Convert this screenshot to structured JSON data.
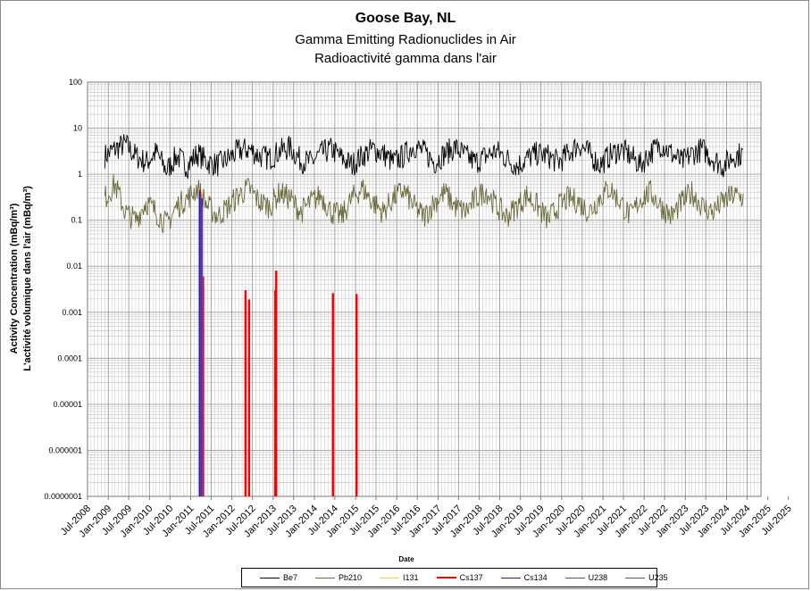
{
  "title": "Goose Bay, NL",
  "subtitle_en": "Gamma Emitting Radionuclides in Air",
  "subtitle_fr": "Radioactivité gamma dans l'air",
  "ylabel_en": "Activity Concentration  (mBq/m³)",
  "ylabel_fr": "L'activité volumique dans l'air (mBq/m³)",
  "xlabel": "Date",
  "chart_data": {
    "type": "line",
    "yscale": "log",
    "ylim": [
      1e-07,
      100
    ],
    "xlim": [
      "2008-07-01",
      "2024-11-01"
    ],
    "y_ticks": [
      "100",
      "10",
      "1",
      "0.1",
      "0.01",
      "0.001",
      "0.0001",
      "0.00001",
      "0.000001",
      "0.0000001"
    ],
    "x_ticks": [
      "Jul-2008",
      "Jan-2009",
      "Jul-2009",
      "Jan-2010",
      "Jul-2010",
      "Jan-2011",
      "Jul-2011",
      "Jan-2012",
      "Jul-2012",
      "Jan-2013",
      "Jul-2013",
      "Jan-2014",
      "Jul-2014",
      "Jan-2015",
      "Jul-2015",
      "Jan-2016",
      "Jul-2016",
      "Jan-2017",
      "Jul-2017",
      "Jan-2018",
      "Jul-2018",
      "Jan-2019",
      "Jul-2019",
      "Jan-2020",
      "Jul-2020",
      "Jan-2021",
      "Jul-2021",
      "Jan-2022",
      "Jul-2022",
      "Jan-2023",
      "Jul-2023",
      "Jan-2024",
      "Jul-2024",
      "Jan-2025",
      "Jul-2025"
    ],
    "grid": true,
    "legend_position": "bottom",
    "series": [
      {
        "name": "Be7",
        "color": "#000000",
        "width": 0.9,
        "kind": "trend",
        "x": [
          "2008-12-01",
          "2009-03-01",
          "2009-06-01",
          "2009-09-01",
          "2009-12-01",
          "2010-03-01",
          "2010-06-01",
          "2010-09-01",
          "2010-12-01",
          "2011-03-01",
          "2011-06-01",
          "2011-09-01",
          "2011-12-01",
          "2012-03-01",
          "2012-06-01",
          "2012-09-01",
          "2012-12-01",
          "2013-03-01",
          "2013-06-01",
          "2013-09-01",
          "2013-12-01",
          "2014-03-01",
          "2014-06-01",
          "2014-09-01",
          "2014-12-01",
          "2015-03-01",
          "2015-06-01",
          "2015-09-01",
          "2015-12-01",
          "2016-03-01",
          "2016-06-01",
          "2016-09-01",
          "2016-12-01",
          "2017-03-01",
          "2017-06-01",
          "2017-09-01",
          "2017-12-01",
          "2018-03-01",
          "2018-06-01",
          "2018-09-01",
          "2018-12-01",
          "2019-03-01",
          "2019-06-01",
          "2019-09-01",
          "2019-12-01",
          "2020-03-01",
          "2020-06-01",
          "2020-09-01",
          "2020-12-01",
          "2021-03-01",
          "2021-06-01",
          "2021-09-01",
          "2021-12-01",
          "2022-03-01",
          "2022-06-01",
          "2022-09-01",
          "2022-12-01",
          "2023-03-01",
          "2023-06-01",
          "2023-09-01",
          "2023-12-01",
          "2024-03-01",
          "2024-06-01"
        ],
        "values": [
          2.5,
          3.5,
          4.5,
          2.5,
          1.8,
          3,
          1.2,
          2.5,
          1.5,
          2.8,
          1.8,
          1.6,
          2.2,
          3.2,
          3.5,
          2.5,
          2.2,
          3.2,
          3.8,
          2,
          1.8,
          2.8,
          3.5,
          2.2,
          1.6,
          2.5,
          3.5,
          2.8,
          1.8,
          2.5,
          4.2,
          3,
          1.8,
          2.8,
          3.8,
          2.5,
          1.8,
          2.5,
          3.2,
          2.2,
          1.5,
          2.2,
          2.8,
          2.5,
          1.8,
          2.8,
          4.5,
          2.8,
          1.6,
          2.5,
          3.5,
          2.5,
          1.6,
          3,
          4.5,
          2.8,
          1.8,
          2.8,
          3.5,
          2.2,
          1.5,
          2.5,
          2.8
        ]
      },
      {
        "name": "Pb210",
        "color": "#6b6a3a",
        "width": 0.9,
        "kind": "trend",
        "x": [
          "2008-12-01",
          "2009-03-01",
          "2009-06-01",
          "2009-09-01",
          "2009-12-01",
          "2010-03-01",
          "2010-06-01",
          "2010-09-01",
          "2010-12-01",
          "2011-03-01",
          "2011-06-01",
          "2011-09-01",
          "2011-12-01",
          "2012-03-01",
          "2012-06-01",
          "2012-09-01",
          "2012-12-01",
          "2013-03-01",
          "2013-06-01",
          "2013-09-01",
          "2013-12-01",
          "2014-03-01",
          "2014-06-01",
          "2014-09-01",
          "2014-12-01",
          "2015-03-01",
          "2015-06-01",
          "2015-09-01",
          "2015-12-01",
          "2016-03-01",
          "2016-06-01",
          "2016-09-01",
          "2016-12-01",
          "2017-03-01",
          "2017-06-01",
          "2017-09-01",
          "2017-12-01",
          "2018-03-01",
          "2018-06-01",
          "2018-09-01",
          "2018-12-01",
          "2019-03-01",
          "2019-06-01",
          "2019-09-01",
          "2019-12-01",
          "2020-03-01",
          "2020-06-01",
          "2020-09-01",
          "2020-12-01",
          "2021-03-01",
          "2021-06-01",
          "2021-09-01",
          "2021-12-01",
          "2022-03-01",
          "2022-06-01",
          "2022-09-01",
          "2022-12-01",
          "2023-03-01",
          "2023-06-01",
          "2023-09-01",
          "2023-12-01",
          "2024-03-01",
          "2024-06-01"
        ],
        "values": [
          0.3,
          0.6,
          0.15,
          0.1,
          0.25,
          0.15,
          0.08,
          0.2,
          0.3,
          0.5,
          0.2,
          0.12,
          0.2,
          0.35,
          0.5,
          0.25,
          0.2,
          0.4,
          0.3,
          0.15,
          0.25,
          0.35,
          0.15,
          0.12,
          0.3,
          0.5,
          0.25,
          0.15,
          0.3,
          0.45,
          0.2,
          0.12,
          0.25,
          0.4,
          0.2,
          0.15,
          0.3,
          0.45,
          0.2,
          0.12,
          0.2,
          0.35,
          0.2,
          0.1,
          0.2,
          0.3,
          0.25,
          0.15,
          0.3,
          0.5,
          0.25,
          0.12,
          0.3,
          0.4,
          0.2,
          0.12,
          0.25,
          0.4,
          0.2,
          0.15,
          0.25,
          0.35,
          0.3
        ]
      },
      {
        "name": "I131",
        "color": "#f3d24b",
        "width": 1.6,
        "kind": "spikes",
        "x": [
          "2011-04-08"
        ],
        "values": [
          0.4
        ]
      },
      {
        "name": "Cs137",
        "color": "#ff0000",
        "width": 2.5,
        "kind": "spikes",
        "x": [
          "2011-03-25",
          "2011-04-20",
          "2012-05-01",
          "2012-06-01",
          "2013-01-20",
          "2013-01-28",
          "2014-06-15",
          "2015-01-10"
        ],
        "values": [
          0.45,
          0.006,
          0.003,
          0.0019,
          0.003,
          0.008,
          0.0026,
          0.0025
        ]
      },
      {
        "name": "Cs134",
        "color": "#1c1cb0",
        "width": 1.6,
        "kind": "spikes",
        "x": [
          "2011-03-20",
          "2011-04-10"
        ],
        "values": [
          0.42,
          0.3
        ]
      },
      {
        "name": "U238",
        "color": "#6a3fb4",
        "width": 1.3,
        "kind": "spikes",
        "x": [
          "2011-04-02"
        ],
        "values": [
          0.38
        ]
      },
      {
        "name": "U235",
        "color": "#5a4aa8",
        "width": 1.3,
        "kind": "spikes",
        "x": [
          "2011-04-15"
        ],
        "values": [
          0.2
        ]
      }
    ]
  }
}
